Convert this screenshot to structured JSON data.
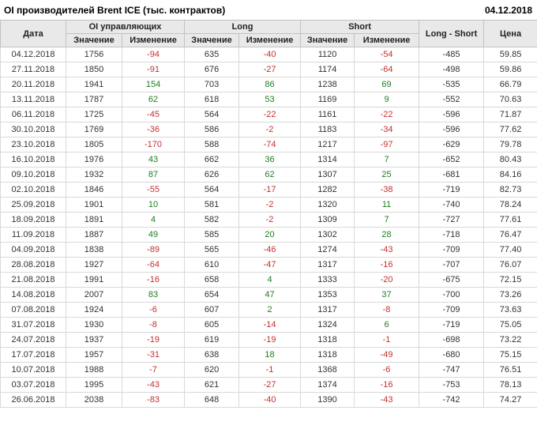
{
  "header": {
    "title": "OI производителей Brent ICE (тыс. контрактов)",
    "date": "04.12.2018"
  },
  "table": {
    "columns": {
      "date": "Дата",
      "oi_group": "OI управляющих",
      "long_group": "Long",
      "short_group": "Short",
      "value": "Значение",
      "change": "Изменение",
      "long_short": "Long - Short",
      "price": "Цена"
    },
    "rows": [
      {
        "date": "04.12.2018",
        "oi_value": 1756,
        "oi_change": -94,
        "long_value": 635,
        "long_change": -40,
        "short_value": 1120,
        "short_change": -54,
        "long_short": -485,
        "price": "59.85"
      },
      {
        "date": "27.11.2018",
        "oi_value": 1850,
        "oi_change": -91,
        "long_value": 676,
        "long_change": -27,
        "short_value": 1174,
        "short_change": -64,
        "long_short": -498,
        "price": "59.86"
      },
      {
        "date": "20.11.2018",
        "oi_value": 1941,
        "oi_change": 154,
        "long_value": 703,
        "long_change": 86,
        "short_value": 1238,
        "short_change": 69,
        "long_short": -535,
        "price": "66.79"
      },
      {
        "date": "13.11.2018",
        "oi_value": 1787,
        "oi_change": 62,
        "long_value": 618,
        "long_change": 53,
        "short_value": 1169,
        "short_change": 9,
        "long_short": -552,
        "price": "70.63"
      },
      {
        "date": "06.11.2018",
        "oi_value": 1725,
        "oi_change": -45,
        "long_value": 564,
        "long_change": -22,
        "short_value": 1161,
        "short_change": -22,
        "long_short": -596,
        "price": "71.87"
      },
      {
        "date": "30.10.2018",
        "oi_value": 1769,
        "oi_change": -36,
        "long_value": 586,
        "long_change": -2,
        "short_value": 1183,
        "short_change": -34,
        "long_short": -596,
        "price": "77.62"
      },
      {
        "date": "23.10.2018",
        "oi_value": 1805,
        "oi_change": -170,
        "long_value": 588,
        "long_change": -74,
        "short_value": 1217,
        "short_change": -97,
        "long_short": -629,
        "price": "79.78"
      },
      {
        "date": "16.10.2018",
        "oi_value": 1976,
        "oi_change": 43,
        "long_value": 662,
        "long_change": 36,
        "short_value": 1314,
        "short_change": 7,
        "long_short": -652,
        "price": "80.43"
      },
      {
        "date": "09.10.2018",
        "oi_value": 1932,
        "oi_change": 87,
        "long_value": 626,
        "long_change": 62,
        "short_value": 1307,
        "short_change": 25,
        "long_short": -681,
        "price": "84.16"
      },
      {
        "date": "02.10.2018",
        "oi_value": 1846,
        "oi_change": -55,
        "long_value": 564,
        "long_change": -17,
        "short_value": 1282,
        "short_change": -38,
        "long_short": -719,
        "price": "82.73"
      },
      {
        "date": "25.09.2018",
        "oi_value": 1901,
        "oi_change": 10,
        "long_value": 581,
        "long_change": -2,
        "short_value": 1320,
        "short_change": 11,
        "long_short": -740,
        "price": "78.24"
      },
      {
        "date": "18.09.2018",
        "oi_value": 1891,
        "oi_change": 4,
        "long_value": 582,
        "long_change": -2,
        "short_value": 1309,
        "short_change": 7,
        "long_short": -727,
        "price": "77.61"
      },
      {
        "date": "11.09.2018",
        "oi_value": 1887,
        "oi_change": 49,
        "long_value": 585,
        "long_change": 20,
        "short_value": 1302,
        "short_change": 28,
        "long_short": -718,
        "price": "76.47"
      },
      {
        "date": "04.09.2018",
        "oi_value": 1838,
        "oi_change": -89,
        "long_value": 565,
        "long_change": -46,
        "short_value": 1274,
        "short_change": -43,
        "long_short": -709,
        "price": "77.40"
      },
      {
        "date": "28.08.2018",
        "oi_value": 1927,
        "oi_change": -64,
        "long_value": 610,
        "long_change": -47,
        "short_value": 1317,
        "short_change": -16,
        "long_short": -707,
        "price": "76.07"
      },
      {
        "date": "21.08.2018",
        "oi_value": 1991,
        "oi_change": -16,
        "long_value": 658,
        "long_change": 4,
        "short_value": 1333,
        "short_change": -20,
        "long_short": -675,
        "price": "72.15"
      },
      {
        "date": "14.08.2018",
        "oi_value": 2007,
        "oi_change": 83,
        "long_value": 654,
        "long_change": 47,
        "short_value": 1353,
        "short_change": 37,
        "long_short": -700,
        "price": "73.26"
      },
      {
        "date": "07.08.2018",
        "oi_value": 1924,
        "oi_change": -6,
        "long_value": 607,
        "long_change": 2,
        "short_value": 1317,
        "short_change": -8,
        "long_short": -709,
        "price": "73.63"
      },
      {
        "date": "31.07.2018",
        "oi_value": 1930,
        "oi_change": -8,
        "long_value": 605,
        "long_change": -14,
        "short_value": 1324,
        "short_change": 6,
        "long_short": -719,
        "price": "75.05"
      },
      {
        "date": "24.07.2018",
        "oi_value": 1937,
        "oi_change": -19,
        "long_value": 619,
        "long_change": -19,
        "short_value": 1318,
        "short_change": -1,
        "long_short": -698,
        "price": "73.22"
      },
      {
        "date": "17.07.2018",
        "oi_value": 1957,
        "oi_change": -31,
        "long_value": 638,
        "long_change": 18,
        "short_value": 1318,
        "short_change": -49,
        "long_short": -680,
        "price": "75.15"
      },
      {
        "date": "10.07.2018",
        "oi_value": 1988,
        "oi_change": -7,
        "long_value": 620,
        "long_change": -1,
        "short_value": 1368,
        "short_change": -6,
        "long_short": -747,
        "price": "76.51"
      },
      {
        "date": "03.07.2018",
        "oi_value": 1995,
        "oi_change": -43,
        "long_value": 621,
        "long_change": -27,
        "short_value": 1374,
        "short_change": -16,
        "long_short": -753,
        "price": "78.13"
      },
      {
        "date": "26.06.2018",
        "oi_value": 2038,
        "oi_change": -83,
        "long_value": 648,
        "long_change": -40,
        "short_value": 1390,
        "short_change": -43,
        "long_short": -742,
        "price": "74.27"
      }
    ]
  },
  "colors": {
    "positive_change": "#1f7d1f",
    "negative_change": "#c53030",
    "header_bg": "#e9e9e9"
  }
}
